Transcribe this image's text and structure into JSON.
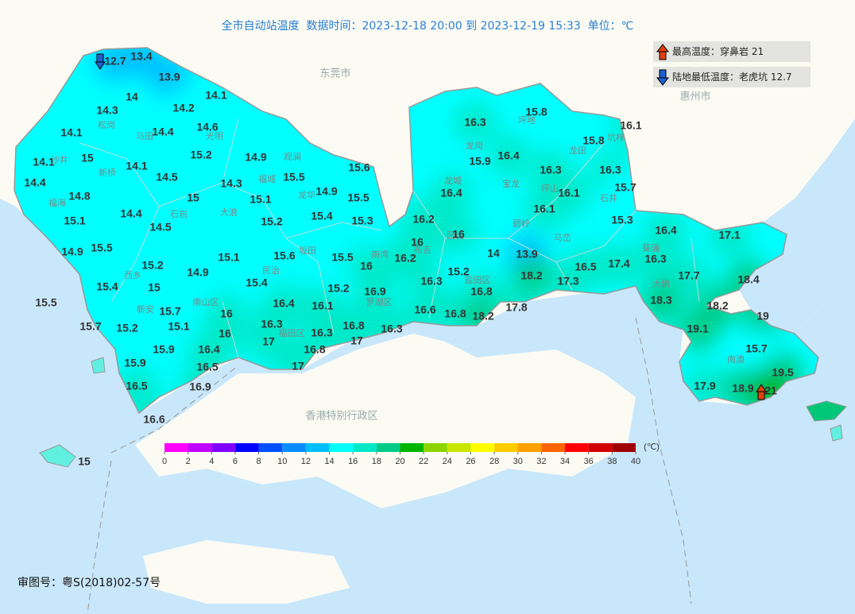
{
  "header": {
    "title": "全市自动站温度  数据时间：2023-12-18 20:00 到 2023-12-19 15:33  单位：℃"
  },
  "extremes": {
    "max": "最高温度：穿鼻岩 21",
    "min": "陆地最低温度：老虎坑 12.7"
  },
  "cities": [
    "东莞市",
    "惠州市",
    "香港特别行政区"
  ],
  "places": [
    "松岗",
    "马田",
    "光明",
    "沙井",
    "新桥",
    "福海",
    "石岩",
    "大浪",
    "福城",
    "观澜",
    "龙华",
    "民治",
    "坂田",
    "南湾",
    "龙城",
    "龙岗",
    "坪地",
    "龙田",
    "坑梓",
    "宝龙",
    "坪山",
    "石井",
    "碧岭",
    "马峦",
    "葵涌",
    "大鹏",
    "南澳",
    "西乡",
    "新安",
    "南山区",
    "福田区",
    "罗湖区",
    "盐田区",
    "布吉",
    "园山"
  ],
  "stations": [
    12.7,
    13.4,
    13.9,
    14,
    14.1,
    14.3,
    14.2,
    14.1,
    14.4,
    14.6,
    16.3,
    15.8,
    16.1,
    15.8,
    14.1,
    15,
    14.1,
    15.2,
    14.9,
    15.6,
    15.9,
    16.4,
    16.3,
    16.3,
    14.4,
    14.5,
    14.3,
    15.5,
    16.4,
    16.1,
    15.7,
    14.8,
    15,
    15.1,
    14.9,
    15.5,
    14.4,
    15.1,
    15.2,
    15.4,
    15.3,
    16.2,
    16.1,
    15.3,
    14.5,
    16,
    16,
    16.4,
    17.1,
    15.5,
    14.9,
    15.1,
    15.6,
    15.5,
    16,
    16.2,
    14,
    13.9,
    16.3,
    15.2,
    14.9,
    16.3,
    15.2,
    16.5,
    17.4,
    17.7,
    18.4,
    15.4,
    15,
    15.4,
    15.2,
    16.9,
    18.2,
    17.3,
    15.5,
    16.4,
    16.1,
    16.8,
    18.3,
    18.2,
    15.7,
    16,
    16.6,
    16.8,
    18.2,
    17.8,
    19,
    15.7,
    15.2,
    15.1,
    16.3,
    16.3,
    16.8,
    16.3,
    19.1,
    16,
    17,
    17,
    15.9,
    16.4,
    16.8,
    15.7,
    15.9,
    16.5,
    17,
    19.5,
    16.5,
    16.9,
    17.9,
    18.9,
    21,
    16.6,
    15
  ],
  "colorbar": {
    "ticks": [
      0,
      2,
      4,
      6,
      8,
      10,
      12,
      14,
      16,
      18,
      20,
      22,
      24,
      26,
      28,
      30,
      32,
      34,
      36,
      38,
      40
    ],
    "colors": [
      "#ff00ff",
      "#c000ff",
      "#8000ff",
      "#0000ff",
      "#0050ff",
      "#0a8cff",
      "#00bfff",
      "#00ffff",
      "#00e8c8",
      "#00cc88",
      "#00b400",
      "#8cd400",
      "#c8e600",
      "#ffff00",
      "#ffcc00",
      "#ffa000",
      "#ff6400",
      "#ff0000",
      "#d20000",
      "#a00000"
    ],
    "unit": "(℃)"
  },
  "footer": "审图号：粤S(2018)02-57号"
}
